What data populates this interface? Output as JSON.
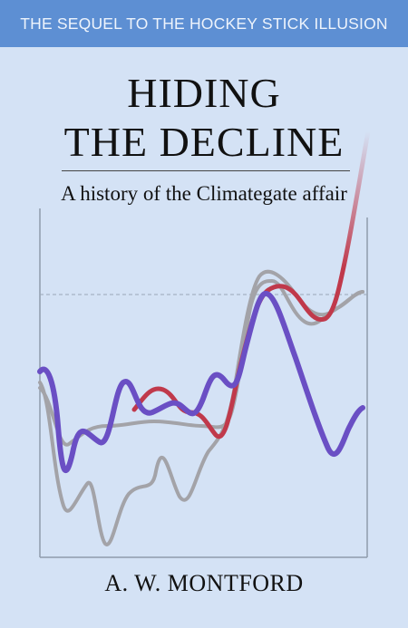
{
  "banner": {
    "text": "THE SEQUEL TO THE HOCKEY STICK ILLUSION"
  },
  "title": {
    "line1": "HIDING",
    "line2": "THE DECLINE"
  },
  "subtitle": "A history of the Climategate affair",
  "author": "A. W. MONTFORD",
  "colors": {
    "background": "#d4e2f5",
    "banner": "#5d8fd3",
    "purple_line": "#6a4fc4",
    "red_line": "#c0394b",
    "grey_line": "#a3a3a8"
  }
}
